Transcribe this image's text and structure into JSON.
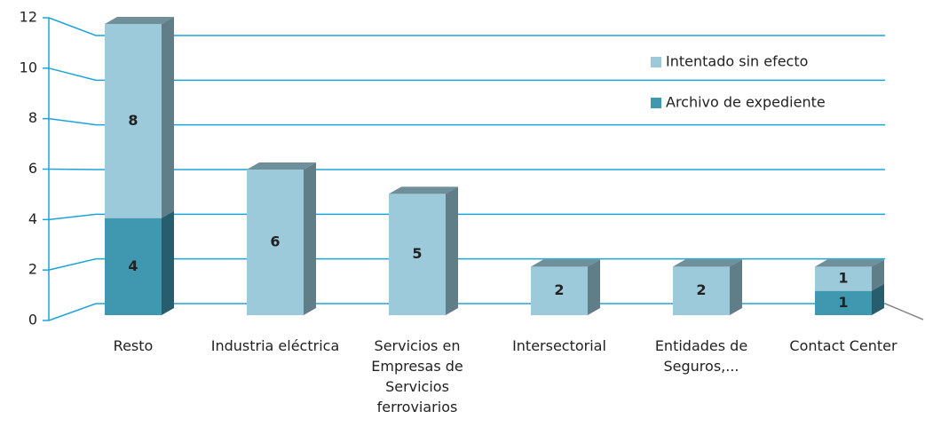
{
  "chart_data": {
    "type": "bar3d_stacked",
    "categories": [
      "Resto",
      "Industria eléctrica",
      "Servicios en Empresas de Servicios ferroviarios",
      "Intersectorial",
      "Entidades de Seguros,...",
      "Contact Center"
    ],
    "series": [
      {
        "name": "Archivo de expediente",
        "color": "#3f98b0",
        "values": [
          4,
          0,
          0,
          0,
          0,
          1
        ]
      },
      {
        "name": "Intentado sin efecto",
        "color": "#9ccadb",
        "values": [
          8,
          6,
          5,
          2,
          2,
          1
        ]
      }
    ],
    "ylim": [
      0,
      12
    ],
    "yticks": [
      0,
      2,
      4,
      6,
      8,
      10,
      12
    ],
    "grid": true,
    "gridcolor": "#1fa3d8",
    "legend": "top-right"
  }
}
